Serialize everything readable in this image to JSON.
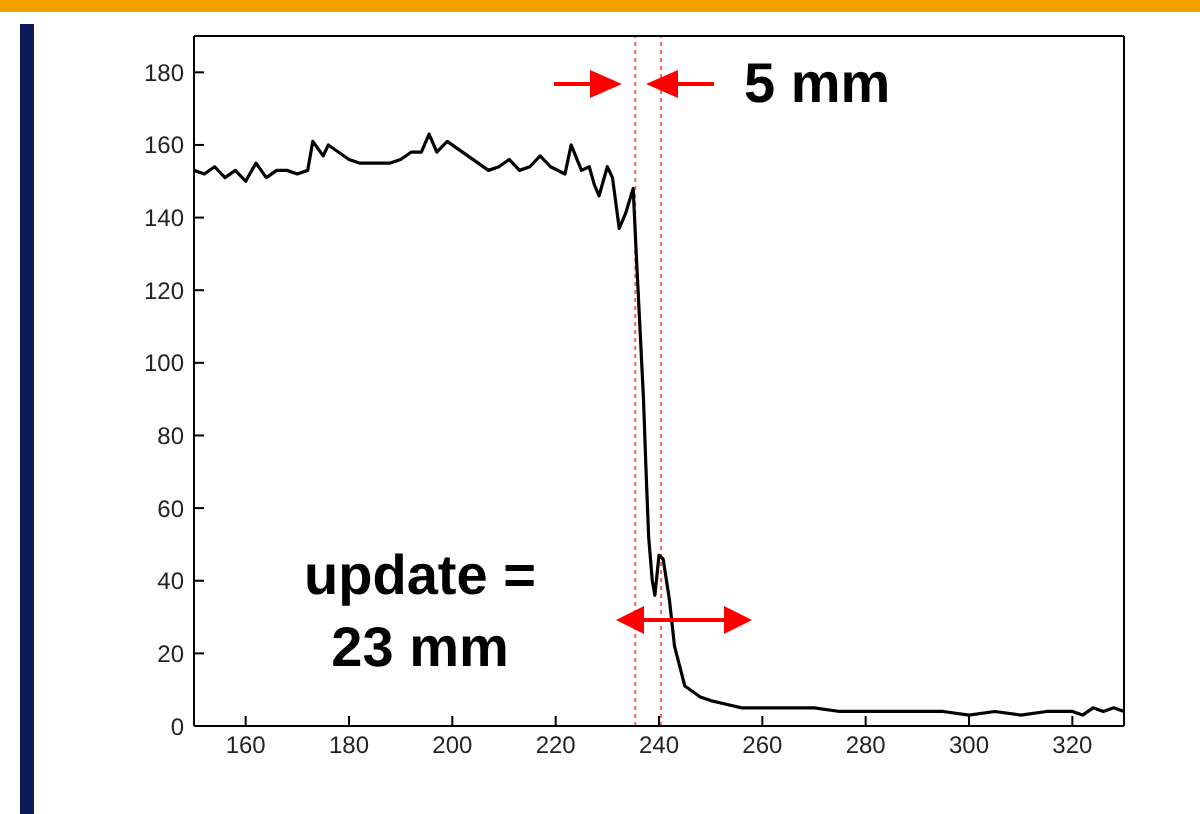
{
  "chart_data": {
    "type": "line",
    "annotations": [
      "5 mm",
      "update =\n23 mm"
    ],
    "x": [
      150,
      152,
      154,
      156,
      158,
      160,
      162,
      164,
      166,
      168,
      170,
      172,
      173,
      175,
      176,
      178,
      180,
      182,
      184,
      186,
      188,
      190,
      192,
      194,
      195.5,
      197,
      199,
      201,
      203,
      205,
      207,
      209,
      211,
      213,
      215,
      217,
      219,
      221.8,
      223,
      225,
      226.5,
      227.5,
      228.4,
      230,
      231,
      232.3,
      233.5,
      235,
      235.6,
      236.3,
      237,
      237.5,
      238,
      238.7,
      239.2,
      240,
      240.8,
      242,
      243,
      245,
      248,
      250,
      253,
      256,
      260,
      265,
      270,
      275,
      280,
      285,
      290,
      295,
      300,
      305,
      310,
      315,
      320,
      322,
      324,
      326,
      328,
      330
    ],
    "series": [
      {
        "color": "#000000",
        "values": [
          153,
          152,
          154,
          151,
          153,
          150,
          155,
          151,
          153,
          153,
          152,
          153,
          161,
          157,
          160,
          158,
          156,
          155,
          155,
          155,
          155,
          156,
          158,
          158,
          163,
          158,
          161,
          159,
          157,
          155,
          153,
          154,
          156,
          153,
          154,
          157,
          154,
          152,
          160,
          153,
          154,
          149,
          146,
          154,
          151,
          137,
          141,
          148,
          130,
          110,
          90,
          70,
          52,
          40,
          36,
          47,
          46,
          35,
          22,
          11,
          8,
          7,
          6,
          5,
          5,
          5,
          5,
          4,
          4,
          4,
          4,
          4,
          3,
          4,
          3,
          4,
          4,
          3,
          5,
          4,
          5,
          4
        ]
      }
    ],
    "xlim": [
      150,
      330
    ],
    "xticks": [
      160,
      180,
      200,
      220,
      240,
      260,
      280,
      300,
      320
    ],
    "ylim": [
      0,
      190
    ],
    "yticks": [
      0,
      20,
      40,
      60,
      80,
      100,
      120,
      140,
      160,
      180
    ],
    "marker": "none",
    "line_style": "solid",
    "ref_lines": [
      {
        "axis": "x",
        "value": 235.4,
        "color": "#ff6060",
        "line_style": "dotted"
      },
      {
        "axis": "x",
        "value": 240.4,
        "color": "#ff6060",
        "line_style": "dotted"
      }
    ]
  }
}
